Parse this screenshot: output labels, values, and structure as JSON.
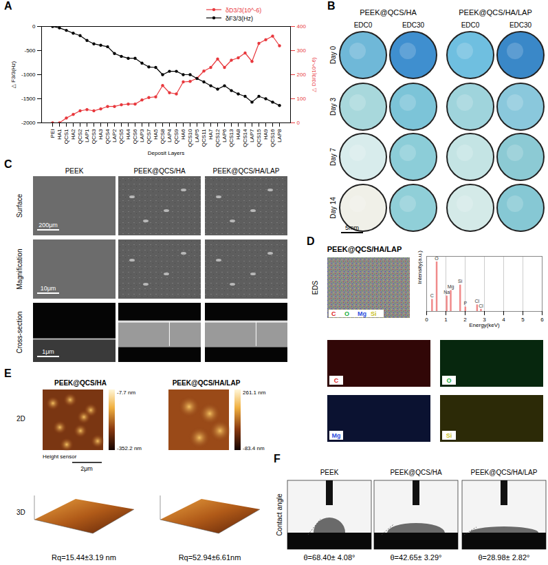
{
  "chart_data": [
    {
      "type": "line",
      "x_label": "Deposit Layers",
      "categories": [
        "PEI",
        "HA1",
        "QCS1",
        "HA2",
        "QCS2",
        "LAP1",
        "QCS3",
        "HA3",
        "QCS4",
        "LAP2",
        "QCS5",
        "HA4",
        "QCS6",
        "LAP3",
        "QCS7",
        "HA5",
        "QCS8",
        "LAP4",
        "QCS9",
        "HA6",
        "QCS10",
        "LAP5",
        "QCS11",
        "HA7",
        "QCS12",
        "LAP6",
        "QCS13",
        "HA8",
        "QCS14",
        "LAP7",
        "QCS15",
        "HA9",
        "QCS16",
        "LAP8"
      ],
      "series": [
        {
          "name": "δD3/3(10^-6)",
          "color": "#e8383d",
          "marker": "circle",
          "axis": "y2",
          "values": [
            0,
            0,
            20,
            35,
            50,
            55,
            50,
            58,
            68,
            68,
            75,
            78,
            78,
            95,
            105,
            108,
            155,
            125,
            120,
            170,
            172,
            185,
            215,
            230,
            265,
            230,
            260,
            270,
            290,
            255,
            330,
            345,
            360,
            320
          ]
        },
        {
          "name": "δF3/3(Hz)",
          "color": "#000000",
          "marker": "circle",
          "values": [
            0,
            -30,
            -80,
            -140,
            -190,
            -290,
            -360,
            -390,
            -420,
            -560,
            -620,
            -660,
            -660,
            -760,
            -840,
            -850,
            -1000,
            -930,
            -930,
            -1000,
            -1000,
            -1080,
            -1150,
            -1230,
            -1300,
            -1230,
            -1330,
            -1400,
            -1450,
            -1570,
            -1450,
            -1500,
            -1570,
            -1640
          ]
        }
      ],
      "y_label": "△ F3/3(Hz)",
      "y2_label": "△ D3/3(10^-6)",
      "ylim": [
        -2000,
        0
      ],
      "yticks": [
        -2000,
        -1500,
        -1000,
        -500,
        0
      ],
      "y2lim": [
        0,
        400
      ],
      "y2ticks": [
        0,
        100,
        200,
        300,
        400
      ],
      "legend": "top-right"
    },
    {
      "type": "spectrum",
      "x_label": "Energy(keV)",
      "y_label": "Intensity(a.u.)",
      "x": [
        0.28,
        0.52,
        1.04,
        1.25,
        1.74,
        2.01,
        2.62,
        2.82
      ],
      "values": [
        22,
        90,
        28,
        38,
        48,
        8,
        12,
        4
      ],
      "point_labels": [
        "C",
        "O",
        "Na",
        "Mg",
        "Si",
        "P",
        "Cl",
        "Cl"
      ],
      "xlim": [
        0,
        6
      ],
      "xticks": [
        0,
        1,
        2,
        3,
        4,
        5,
        6
      ],
      "ylim": [
        0,
        100
      ],
      "tick_labels": "x",
      "grid": true,
      "color": "#f08a8a"
    }
  ],
  "panels": {
    "A": {
      "label": "A"
    },
    "B": {
      "label": "B",
      "groups": [
        "PEEK@QCS/HA",
        "PEEK@QCS/HA/LAP"
      ],
      "columns": [
        "EDC0",
        "EDC30",
        "EDC0",
        "EDC30"
      ],
      "rows": [
        "Day 0",
        "Day 3",
        "Day 7",
        "Day 14"
      ],
      "scale_bar": "5mm"
    },
    "C": {
      "label": "C",
      "columns": [
        "PEEK",
        "PEEK@QCS/HA",
        "PEEK@QCS/HA/LAP"
      ],
      "rows": [
        "Surface",
        "Magnification",
        "Cross-section"
      ],
      "scale_bars": [
        "200μm",
        "10μm",
        "1μm"
      ]
    },
    "D": {
      "label": "D",
      "title": "PEEK@QCS/HA/LAP",
      "image_label": "EDS",
      "elements": [
        {
          "symbol": "C",
          "color": "#e02020"
        },
        {
          "symbol": "O",
          "color": "#20b040"
        },
        {
          "symbol": "Mg",
          "color": "#3050e0"
        },
        {
          "symbol": "Si",
          "color": "#c8c020"
        }
      ]
    },
    "E": {
      "label": "E",
      "rows": [
        "2D",
        "3D"
      ],
      "channel": "Height sensor",
      "scale_bar": "2μm",
      "columns": [
        {
          "title": "PEEK@QCS/HA",
          "scale_max": "-7.7 nm",
          "scale_min": "-352.2 nm",
          "roughness": "Rq=15.44±3.19 nm"
        },
        {
          "title": "PEEK@QCS/HA/LAP",
          "scale_max": "261.1 nm",
          "scale_min": "-83.4 nm",
          "roughness": "Rq=52.94±6.61nm"
        }
      ]
    },
    "F": {
      "label": "F",
      "row_label": "Contact angle",
      "columns": [
        {
          "title": "PEEK",
          "angle": "θ=68.40± 4.08°"
        },
        {
          "title": "PEEK@QCS/HA",
          "angle": "θ=42.65± 3.29°"
        },
        {
          "title": "PEEK@QCS/HA/LAP",
          "angle": "θ=28.98± 2.82°"
        }
      ]
    }
  }
}
